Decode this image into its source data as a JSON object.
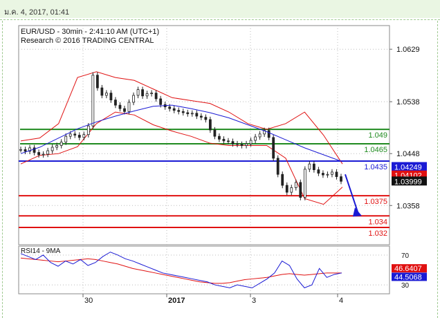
{
  "header": {
    "timestamp": "ม.ค. 4, 2017, 01:41"
  },
  "chart_data": {
    "type": "line",
    "subtype": "candlestick-with-indicators",
    "title": "EUR/USD - 30min - 2:41:10 AM (UTC+1)",
    "subtitle": "Research © 2016 TRADING CENTRAL",
    "y_ticks": [
      "1.0629",
      "1.0538",
      "1.0448",
      "1.0358"
    ],
    "ylim": [
      1.029,
      1.067
    ],
    "x_ticks": [
      "30",
      "2017",
      "3",
      "4"
    ],
    "levels": [
      {
        "label": "1.049",
        "value": 1.049,
        "color": "#1f8a1f"
      },
      {
        "label": "1.0465",
        "value": 1.0465,
        "color": "#1f8a1f"
      },
      {
        "label": "1.0435",
        "value": 1.0435,
        "color": "#1a1ad4"
      },
      {
        "label": "1.0375",
        "value": 1.0375,
        "color": "#e01010"
      },
      {
        "label": "1.034",
        "value": 1.034,
        "color": "#e01010"
      },
      {
        "label": "1.032",
        "value": 1.032,
        "color": "#e01010"
      }
    ],
    "price_badges": [
      {
        "label": "1.04249",
        "value": 1.04249,
        "bg": "#1a1ad4"
      },
      {
        "label": "1.04102",
        "value": 1.04102,
        "bg": "#e01010"
      },
      {
        "label": "1.03999",
        "value": 1.03999,
        "bg": "#111111"
      }
    ],
    "close_series": [
      1.0455,
      1.0452,
      1.0458,
      1.045,
      1.0446,
      1.0447,
      1.0453,
      1.0459,
      1.0462,
      1.0468,
      1.0478,
      1.0482,
      1.048,
      1.0476,
      1.0481,
      1.0496,
      1.0584,
      1.0562,
      1.0549,
      1.0553,
      1.0541,
      1.0532,
      1.0526,
      1.0521,
      1.0537,
      1.0549,
      1.0559,
      1.0548,
      1.0552,
      1.0553,
      1.0543,
      1.0533,
      1.0529,
      1.0526,
      1.0523,
      1.0521,
      1.0519,
      1.0517,
      1.0518,
      1.0513,
      1.0511,
      1.0507,
      1.0489,
      1.0478,
      1.0473,
      1.047,
      1.0469,
      1.0465,
      1.0464,
      1.0462,
      1.0465,
      1.0471,
      1.0477,
      1.0482,
      1.0488,
      1.0476,
      1.044,
      1.0412,
      1.0393,
      1.0381,
      1.0389,
      1.0398,
      1.0372,
      1.0421,
      1.043,
      1.042,
      1.0414,
      1.0411,
      1.0412,
      1.0416,
      1.0408,
      1.04
    ],
    "ma_line": {
      "color": "#1a1ad4",
      "values": [
        1.0448,
        1.0459,
        1.0475,
        1.0491,
        1.0503,
        1.0513,
        1.0522,
        1.053,
        1.0532,
        1.0526,
        1.0519,
        1.051,
        1.0498,
        1.0486,
        1.0472,
        1.0458,
        1.0446,
        1.0434
      ]
    },
    "bollinger_upper": {
      "color": "#e01010",
      "values": [
        1.047,
        1.0475,
        1.05,
        1.058,
        1.059,
        1.058,
        1.0575,
        1.056,
        1.0545,
        1.054,
        1.0535,
        1.052,
        1.05,
        1.049,
        1.05,
        1.052,
        1.048,
        1.043
      ]
    },
    "bollinger_lower": {
      "color": "#e01010",
      "values": [
        1.043,
        1.0445,
        1.0448,
        1.046,
        1.05,
        1.052,
        1.0515,
        1.0498,
        1.0487,
        1.0478,
        1.0466,
        1.0462,
        1.0462,
        1.0462,
        1.044,
        1.037,
        1.036,
        1.039
      ]
    },
    "forecast_arrow": {
      "color": "#1a1ad4"
    },
    "rsi": {
      "label": "RSI14 - 9MA",
      "y_ticks": [
        "70",
        "30"
      ],
      "ylim": [
        18,
        82
      ],
      "rsi_value_label": "44.5068",
      "ma_value_label": "46.6407",
      "rsi_series": [
        72,
        68,
        64,
        70,
        60,
        55,
        62,
        58,
        64,
        56,
        60,
        68,
        74,
        70,
        65,
        62,
        58,
        54,
        50,
        46,
        44,
        42,
        40,
        38,
        36,
        34,
        30,
        28,
        26,
        30,
        28,
        26,
        32,
        38,
        46,
        62,
        56,
        38,
        26,
        30,
        52,
        40,
        44,
        46
      ],
      "ma_series": [
        66,
        65,
        64,
        63,
        62,
        61,
        62,
        63,
        64,
        65,
        64,
        62,
        60,
        58,
        55,
        52,
        50,
        48,
        46,
        44,
        42,
        40,
        38,
        36,
        34,
        33,
        32,
        32,
        33,
        35,
        37,
        38,
        39,
        40,
        42,
        44,
        45,
        44,
        43,
        44,
        45,
        46,
        46,
        46
      ]
    }
  }
}
